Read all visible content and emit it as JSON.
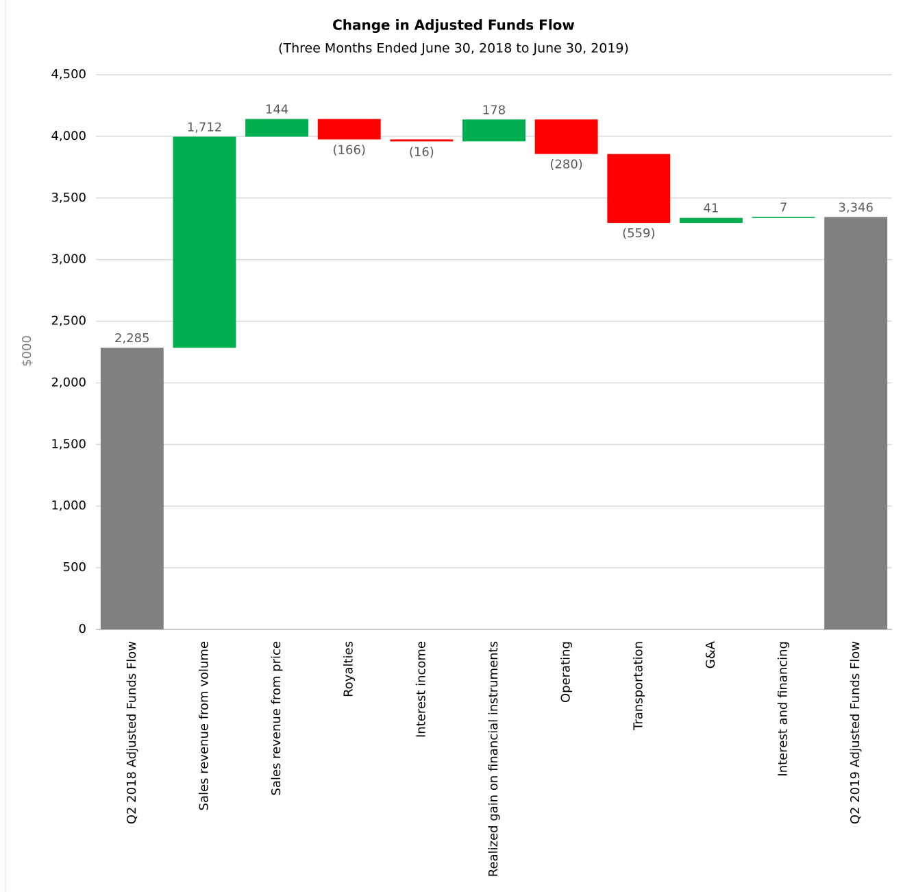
{
  "chart_data": {
    "type": "waterfall",
    "title": "Change in Adjusted Funds Flow",
    "subtitle": "(Three Months Ended June 30, 2018 to June 30, 2019)",
    "y_label": "$000",
    "categories": [
      "Q2 2018 Adjusted Funds Flow",
      "Sales revenue from volume",
      "Sales revenue from price",
      "Royalties",
      "Interest income",
      "Realized gain on financial instruments",
      "Operating",
      "Transportation",
      "G&A",
      "Interest and financing",
      "Q2 2019 Adjusted Funds Flow"
    ],
    "values": [
      2285,
      1712,
      144,
      -166,
      -16,
      178,
      -280,
      -559,
      41,
      7,
      3346
    ],
    "value_labels": [
      "2,285",
      "1,712",
      "144",
      "(166)",
      "(16)",
      "178",
      "(280)",
      "(559)",
      "41",
      "7",
      "3,346"
    ],
    "color_total": "#808080",
    "color_increase": "#00b050",
    "color_decrease": "#ff0000",
    "ylim": [
      0,
      4500
    ],
    "yticks": [
      0,
      500,
      {
        "value": 1000,
        "label": "1,000"
      },
      {
        "value": 1500,
        "label": "1,500"
      },
      {
        "value": 2000,
        "label": "2,000"
      },
      {
        "value": 2500,
        "label": "2,500"
      },
      {
        "value": 3000,
        "label": "3,000"
      },
      {
        "value": 3500,
        "label": "3,500"
      },
      {
        "value": 4000,
        "label": "4,000"
      },
      {
        "value": 4500,
        "label": "4,500"
      }
    ],
    "grid": true
  }
}
